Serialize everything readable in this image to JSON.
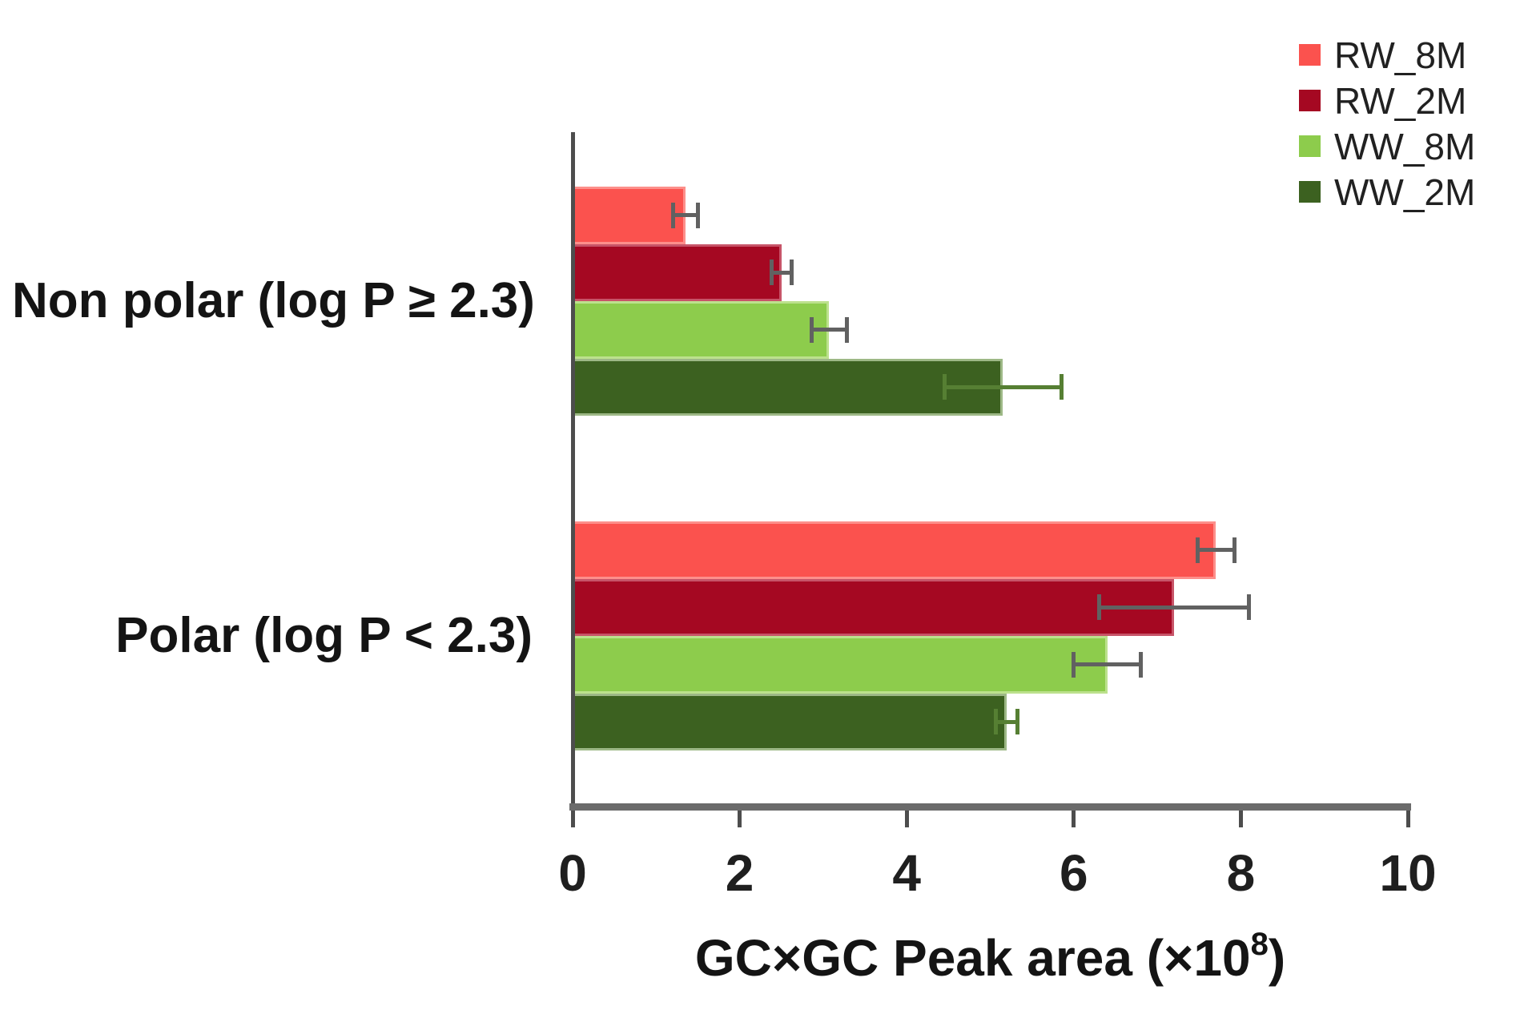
{
  "chart_data": {
    "type": "bar",
    "orientation": "horizontal",
    "title": "",
    "categories": [
      "Non polar (log P ≥ 2.3)",
      "Polar (log P < 2.3)"
    ],
    "series": [
      {
        "name": "RW_8M",
        "color": "#FB524E",
        "border_color": "#FD8F8B",
        "error_color": "#616161",
        "values": [
          1.35,
          7.7
        ],
        "errors": [
          0.15,
          0.22
        ]
      },
      {
        "name": "RW_2M",
        "color": "#A50822",
        "border_color": "#C75468",
        "error_color": "#616161",
        "values": [
          2.5,
          7.2
        ],
        "errors": [
          0.12,
          0.9
        ]
      },
      {
        "name": "WW_8M",
        "color": "#8DCC4C",
        "border_color": "#BCE18D",
        "error_color": "#616161",
        "values": [
          3.07,
          6.4
        ],
        "errors": [
          0.21,
          0.4
        ]
      },
      {
        "name": "WW_2M",
        "color": "#3C6120",
        "border_color": "#9DB886",
        "error_color": "#567F33",
        "values": [
          5.15,
          5.2
        ],
        "errors": [
          0.7,
          0.13
        ]
      }
    ],
    "xlabel": "GC×GC Peak area (×10⁸)",
    "xlabel_parts": {
      "main": "GC×GC Peak area (×10",
      "sup": "8",
      "end": ")"
    },
    "x_ticks": [
      "0",
      "2",
      "4",
      "6",
      "8",
      "10"
    ],
    "xlim": [
      0,
      10
    ],
    "grid": false,
    "error_bars": true,
    "legend_position": "top-right",
    "colors": {
      "x_axis_line": "#6B6B6B",
      "y_axis_line": "#4D4D4D",
      "tick_mark": "#4D4D4D",
      "tick_label": "#1F1F1F",
      "text": "#141414",
      "background": "#FFFFFF"
    }
  }
}
